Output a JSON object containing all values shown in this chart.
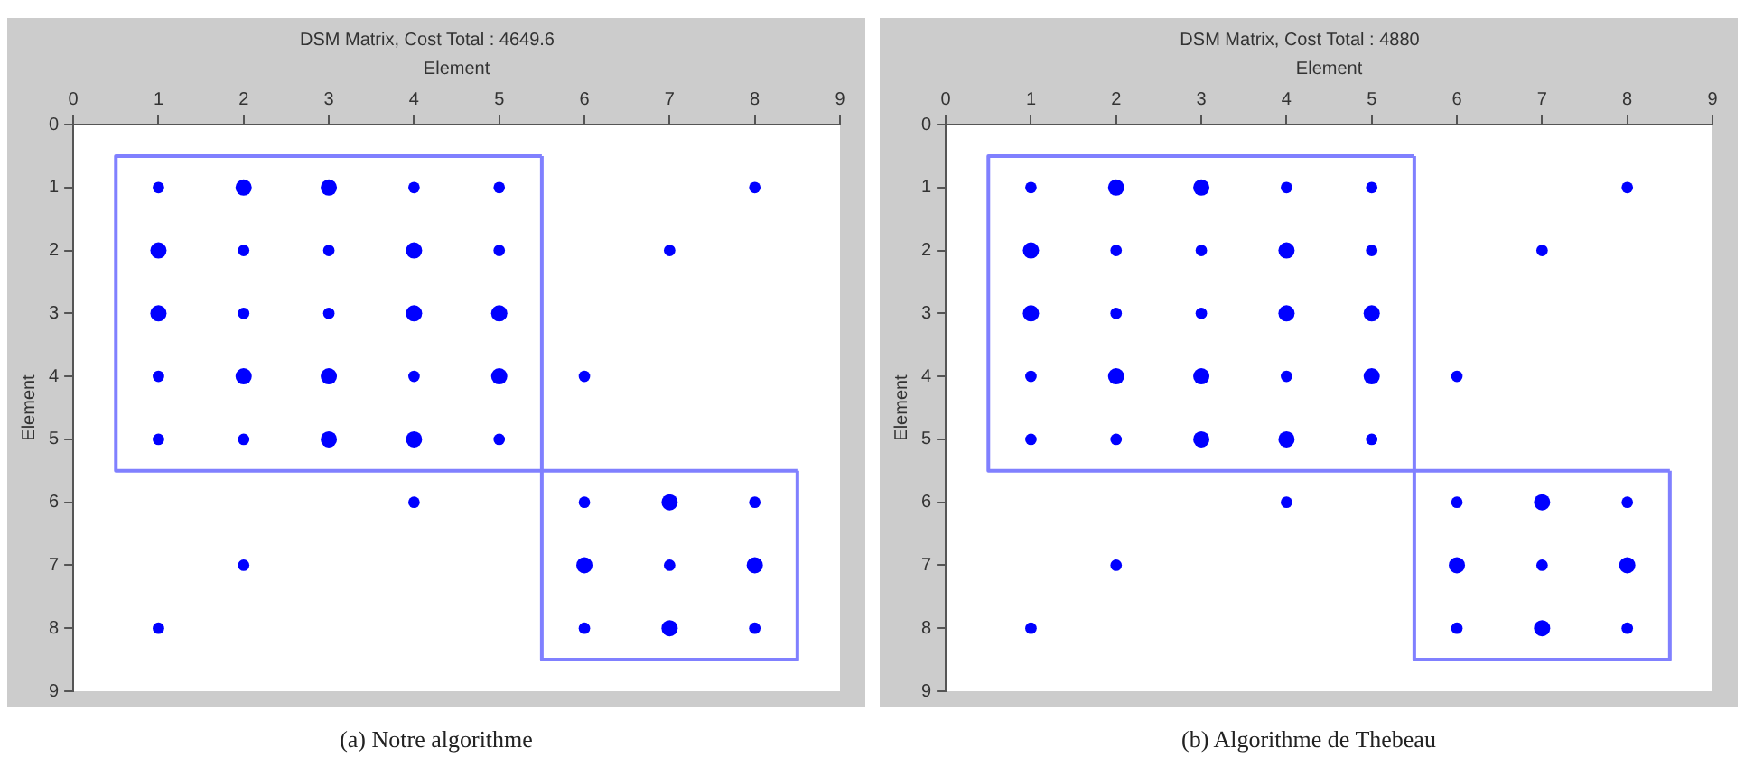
{
  "chart_data": [
    {
      "type": "bubble",
      "title": "DSM Matrix, Cost Total : 4649.6",
      "xlabel": "Element",
      "ylabel": "Element",
      "xlim": [
        0,
        9
      ],
      "ylim": [
        9,
        0
      ],
      "xticks": [
        0,
        1,
        2,
        3,
        4,
        5,
        6,
        7,
        8,
        9
      ],
      "yticks": [
        0,
        1,
        2,
        3,
        4,
        5,
        6,
        7,
        8,
        9
      ],
      "grid": false,
      "marker": "circle",
      "annotations": [
        "(a) Notre algorithme"
      ],
      "series": [
        {
          "color": "#0000ff",
          "x": [
            1,
            2,
            3,
            4,
            5,
            8,
            1,
            2,
            3,
            4,
            5,
            7,
            1,
            2,
            3,
            4,
            5,
            1,
            2,
            3,
            4,
            5,
            6,
            1,
            2,
            3,
            4,
            5,
            4,
            6,
            7,
            8,
            2,
            6,
            7,
            8,
            1,
            6,
            7,
            8
          ],
          "values": [
            1,
            1,
            1,
            1,
            1,
            1,
            2,
            2,
            2,
            2,
            2,
            2,
            3,
            3,
            3,
            3,
            3,
            4,
            4,
            4,
            4,
            4,
            4,
            5,
            5,
            5,
            5,
            5,
            6,
            6,
            6,
            6,
            7,
            7,
            7,
            7,
            8,
            8,
            8,
            8
          ],
          "sizes": [
            0.5,
            1,
            1,
            0.5,
            0.5,
            0.5,
            1,
            0.5,
            0.5,
            1,
            0.5,
            0.5,
            1,
            0.5,
            0.5,
            1,
            1,
            0.5,
            1,
            1,
            0.5,
            1,
            0.5,
            0.5,
            0.5,
            1,
            1,
            0.5,
            0.5,
            0.5,
            1,
            0.5,
            0.5,
            1,
            0.5,
            1,
            0.5,
            0.5,
            1,
            0.5
          ]
        },
        {
          "type": "line",
          "marker": "none",
          "color": "#8080ff",
          "x": [
            0.5,
            0.5,
            5.5,
            5.5
          ],
          "values": [
            0.5,
            5.5,
            5.5,
            0.5
          ]
        },
        {
          "type": "line",
          "marker": "none",
          "color": "#8080ff",
          "x": [
            0.5,
            5.5
          ],
          "values": [
            0.5,
            0.5
          ]
        },
        {
          "type": "line",
          "marker": "none",
          "color": "#8080ff",
          "x": [
            5.5,
            5.5,
            8.5,
            8.5
          ],
          "values": [
            5.5,
            8.5,
            8.5,
            5.5
          ]
        },
        {
          "type": "line",
          "marker": "none",
          "color": "#8080ff",
          "x": [
            5.5,
            8.5
          ],
          "values": [
            5.5,
            5.5
          ]
        }
      ]
    },
    {
      "type": "bubble",
      "title": "DSM Matrix, Cost Total : 4880",
      "xlabel": "Element",
      "ylabel": "Element",
      "xlim": [
        0,
        9
      ],
      "ylim": [
        9,
        0
      ],
      "xticks": [
        0,
        1,
        2,
        3,
        4,
        5,
        6,
        7,
        8,
        9
      ],
      "yticks": [
        0,
        1,
        2,
        3,
        4,
        5,
        6,
        7,
        8,
        9
      ],
      "grid": false,
      "marker": "circle",
      "annotations": [
        "(b) Algorithme de Thebeau"
      ],
      "series": [
        {
          "color": "#0000ff",
          "x": [
            1,
            2,
            3,
            4,
            5,
            8,
            1,
            2,
            3,
            4,
            5,
            7,
            1,
            2,
            3,
            4,
            5,
            1,
            2,
            3,
            4,
            5,
            6,
            1,
            2,
            3,
            4,
            5,
            4,
            6,
            7,
            8,
            2,
            6,
            7,
            8,
            1,
            6,
            7,
            8
          ],
          "values": [
            1,
            1,
            1,
            1,
            1,
            1,
            2,
            2,
            2,
            2,
            2,
            2,
            3,
            3,
            3,
            3,
            3,
            4,
            4,
            4,
            4,
            4,
            4,
            5,
            5,
            5,
            5,
            5,
            6,
            6,
            6,
            6,
            7,
            7,
            7,
            7,
            8,
            8,
            8,
            8
          ],
          "sizes": [
            0.5,
            1,
            1,
            0.5,
            0.5,
            0.5,
            1,
            0.5,
            0.5,
            1,
            0.5,
            0.5,
            1,
            0.5,
            0.5,
            1,
            1,
            0.5,
            1,
            1,
            0.5,
            1,
            0.5,
            0.5,
            0.5,
            1,
            1,
            0.5,
            0.5,
            0.5,
            1,
            0.5,
            0.5,
            1,
            0.5,
            1,
            0.5,
            0.5,
            1,
            0.5
          ]
        },
        {
          "type": "line",
          "marker": "none",
          "color": "#8080ff",
          "x": [
            0.5,
            0.5,
            5.5,
            5.5
          ],
          "values": [
            0.5,
            5.5,
            5.5,
            0.5
          ]
        },
        {
          "type": "line",
          "marker": "none",
          "color": "#8080ff",
          "x": [
            0.5,
            5.5
          ],
          "values": [
            0.5,
            0.5
          ]
        },
        {
          "type": "line",
          "marker": "none",
          "color": "#8080ff",
          "x": [
            5.5,
            5.5,
            8.5,
            8.5
          ],
          "values": [
            5.5,
            8.5,
            8.5,
            5.5
          ]
        },
        {
          "type": "line",
          "marker": "none",
          "color": "#8080ff",
          "x": [
            5.5,
            8.5
          ],
          "values": [
            5.5,
            5.5
          ]
        }
      ]
    }
  ]
}
